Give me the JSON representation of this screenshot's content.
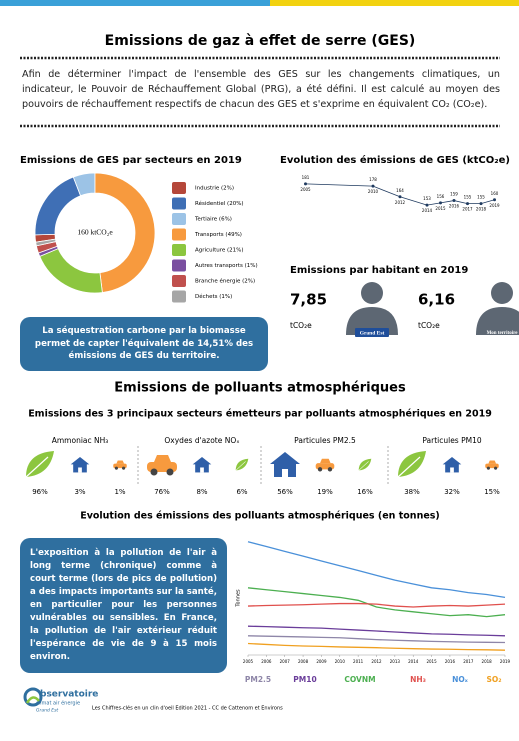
{
  "header": {
    "title": "Emissions de gaz à effet de serre (GES)",
    "intro": "Afin de déterminer l'impact de l'ensemble des GES sur les changements climatiques, un indicateur, le Pouvoir de Réchauffement Global (PRG), a été défini. Il est calculé au moyen des pouvoirs de réchauffement respectifs de chacun des GES et s'exprime en équivalent CO₂ (CO₂e)."
  },
  "ges_sectors": {
    "type": "donut",
    "title": "Emissions de GES par secteurs en 2019",
    "center_label": "160 ktCO₂e",
    "labels": [
      "Industrie (2%)",
      "Résidentiel (20%)",
      "Tertiaire (6%)",
      "Transports (49%)",
      "Agriculture (21%)",
      "Autres transports (1%)",
      "Branche énergie (2%)",
      "Déchets (1%)"
    ],
    "values": [
      2,
      20,
      6,
      49,
      21,
      1,
      2,
      1
    ],
    "colors": [
      "#b5473a",
      "#3f6fb5",
      "#9cc3e6",
      "#f79a3e",
      "#8cc63f",
      "#7a4fa0",
      "#c0504d",
      "#a6a6a6"
    ]
  },
  "ges_evolution": {
    "type": "line",
    "title": "Evolution des émissions de GES (ktCO₂e)",
    "x": [
      2005,
      2010,
      2012,
      2014,
      2015,
      2016,
      2017,
      2018,
      2019
    ],
    "values": [
      181,
      178,
      164,
      153,
      156,
      159,
      155,
      155,
      160
    ],
    "color": "#1f3a5f",
    "xlim": [
      2004,
      2020
    ],
    "ylim": [
      140,
      190
    ]
  },
  "per_capita": {
    "title": "Emissions par habitant en 2019",
    "items": [
      {
        "value": "7,85",
        "unit": "tCO₂e",
        "label": "Grand Est"
      },
      {
        "value": "6,16",
        "unit": "tCO₂e",
        "label": "Mon territoire"
      }
    ]
  },
  "sequestration_note": "La séquestration carbone par la biomasse permet de capter l'équivalent de 14,51% des émissions de GES du territoire.",
  "pollutants": {
    "title": "Emissions de polluants atmosphériques",
    "subtitle": "Emissions des 3 principaux secteurs émetteurs par polluants atmosphériques en 2019",
    "groups": [
      {
        "name": "Ammoniac NH₃",
        "sectors": [
          {
            "icon": "leaf",
            "share": "96%"
          },
          {
            "icon": "house",
            "share": "3%"
          },
          {
            "icon": "car",
            "share": "1%"
          }
        ]
      },
      {
        "name": "Oxydes d'azote NOₓ",
        "sectors": [
          {
            "icon": "car",
            "share": "76%"
          },
          {
            "icon": "house",
            "share": "8%"
          },
          {
            "icon": "leaf",
            "share": "6%"
          }
        ]
      },
      {
        "name": "Particules PM2.5",
        "sectors": [
          {
            "icon": "house",
            "share": "56%"
          },
          {
            "icon": "car",
            "share": "19%"
          },
          {
            "icon": "leaf",
            "share": "16%"
          }
        ]
      },
      {
        "name": "Particules PM10",
        "sectors": [
          {
            "icon": "leaf",
            "share": "38%"
          },
          {
            "icon": "house",
            "share": "32%"
          },
          {
            "icon": "car",
            "share": "15%"
          }
        ]
      }
    ]
  },
  "pollutants_evolution": {
    "type": "line",
    "title": "Evolution des émissions des polluants atmosphériques (en tonnes)",
    "y_label": "Tonnes",
    "x": [
      2005,
      2006,
      2007,
      2008,
      2009,
      2010,
      2011,
      2012,
      2013,
      2014,
      2015,
      2016,
      2017,
      2018,
      2019
    ],
    "xlim": [
      2005,
      2019
    ],
    "ylim": [
      0,
      620
    ],
    "series": [
      {
        "name": "PM2.5",
        "color": "#8e86a8",
        "values": [
          100,
          98,
          96,
          94,
          92,
          90,
          85,
          80,
          77,
          74,
          71,
          69,
          67,
          66,
          65
        ]
      },
      {
        "name": "PM10",
        "color": "#6a3d9a",
        "values": [
          150,
          148,
          145,
          142,
          140,
          135,
          130,
          125,
          120,
          115,
          110,
          108,
          105,
          103,
          100
        ]
      },
      {
        "name": "COVNM",
        "color": "#4caf50",
        "values": [
          350,
          340,
          330,
          320,
          310,
          300,
          285,
          250,
          235,
          225,
          215,
          205,
          210,
          200,
          210
        ]
      },
      {
        "name": "NH₃",
        "color": "#e0504d",
        "values": [
          255,
          258,
          260,
          262,
          265,
          268,
          268,
          265,
          255,
          250,
          255,
          258,
          255,
          260,
          265
        ]
      },
      {
        "name": "NOₓ",
        "color": "#4a90d9",
        "values": [
          590,
          565,
          540,
          515,
          490,
          465,
          440,
          415,
          390,
          370,
          350,
          340,
          325,
          315,
          300
        ]
      },
      {
        "name": "SO₂",
        "color": "#f0a020",
        "values": [
          60,
          55,
          50,
          47,
          45,
          42,
          40,
          38,
          35,
          33,
          31,
          30,
          28,
          27,
          25
        ]
      }
    ]
  },
  "health_note": "L'exposition à la pollution de l'air à long terme (chronique) comme à court terme (lors de pics de pollution) a des impacts importants sur la santé, en particulier pour les personnes vulnérables ou sensibles. En France, la pollution de l'air extérieur réduit l'espérance de vie de 9 à 15 mois environ.",
  "footer": {
    "logo_title": "bservatoire",
    "logo_subtitle": "climat air énergie",
    "logo_region": "Grand Est",
    "text": "Les Chiffres-clés en un clin d'oeil Edition 2021 - CC de Cattenom et Environs"
  }
}
